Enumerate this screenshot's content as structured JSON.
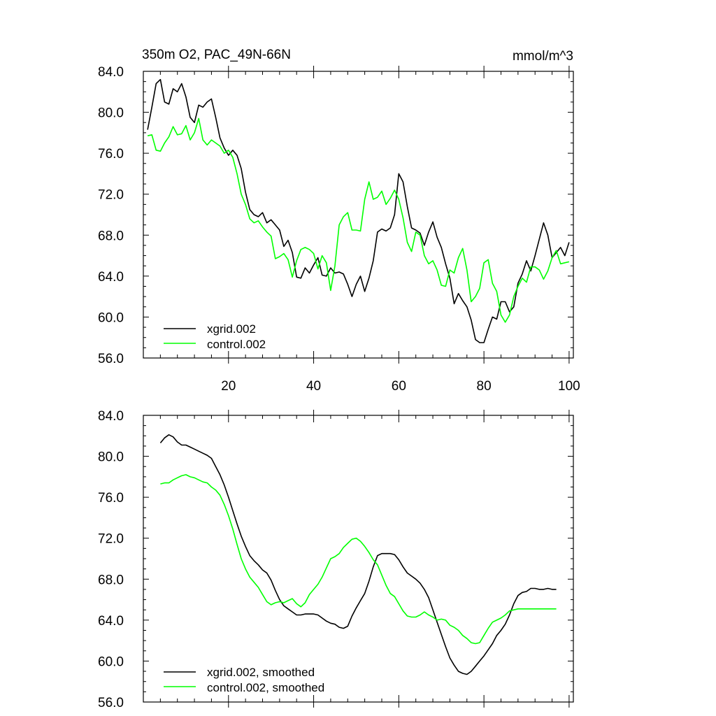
{
  "chart_data": [
    {
      "type": "line",
      "title": "350m O2, PAC_49N-66N",
      "units": "mmol/m^3",
      "xlim": [
        0,
        101
      ],
      "ylim": [
        56,
        84
      ],
      "xticks": [
        20,
        40,
        60,
        80,
        100
      ],
      "yticks": [
        56,
        60,
        64,
        68,
        72,
        76,
        80,
        84
      ],
      "ytick_labels": [
        "56.0",
        "60.0",
        "64.0",
        "68.0",
        "72.0",
        "76.0",
        "80.0",
        "84.0"
      ],
      "xtick_labels": [
        "20",
        "40",
        "60",
        "80",
        "100"
      ],
      "legend_position": "bottom-left",
      "series": [
        {
          "name": "xgrid.002",
          "color": "#000000",
          "x": [
            1,
            2,
            3,
            4,
            5,
            6,
            7,
            8,
            9,
            10,
            11,
            12,
            13,
            14,
            15,
            16,
            17,
            18,
            19,
            20,
            21,
            22,
            23,
            24,
            25,
            26,
            27,
            28,
            29,
            30,
            31,
            32,
            33,
            34,
            35,
            36,
            37,
            38,
            39,
            40,
            41,
            42,
            43,
            44,
            45,
            46,
            47,
            48,
            49,
            50,
            51,
            52,
            53,
            54,
            55,
            56,
            57,
            58,
            59,
            60,
            61,
            62,
            63,
            64,
            65,
            66,
            67,
            68,
            69,
            70,
            71,
            72,
            73,
            74,
            75,
            76,
            77,
            78,
            79,
            80,
            81,
            82,
            83,
            84,
            85,
            86,
            87,
            88,
            89,
            90,
            91,
            92,
            93,
            94,
            95,
            96,
            97,
            98,
            99,
            100
          ],
          "values": [
            78.3,
            80.5,
            82.8,
            83.2,
            81.0,
            80.8,
            82.3,
            82.0,
            82.8,
            81.5,
            79.5,
            79.0,
            80.7,
            80.5,
            81.0,
            81.3,
            79.5,
            77.5,
            76.5,
            75.8,
            76.3,
            75.8,
            74.5,
            72.2,
            70.5,
            70.0,
            69.8,
            70.2,
            69.2,
            69.5,
            69.0,
            68.5,
            66.9,
            67.5,
            66.3,
            63.9,
            63.8,
            64.8,
            64.3,
            65.1,
            65.8,
            64.1,
            64.0,
            64.8,
            64.3,
            64.4,
            64.2,
            63.2,
            62.0,
            63.2,
            64.0,
            62.5,
            63.8,
            65.5,
            68.3,
            68.6,
            68.4,
            68.7,
            70.0,
            74.0,
            73.2,
            70.8,
            68.7,
            68.5,
            68.2,
            67.0,
            68.3,
            69.3,
            67.8,
            66.8,
            65.2,
            63.8,
            61.3,
            62.3,
            61.6,
            61.0,
            59.7,
            57.8,
            57.5,
            57.5,
            58.8,
            60.0,
            59.8,
            61.5,
            61.5,
            60.5,
            61.0,
            63.3,
            64.2,
            65.5,
            64.5,
            66.0,
            67.6,
            69.2,
            68.0,
            65.8,
            66.3,
            66.8,
            66.0,
            67.3
          ]
        },
        {
          "name": "control.002",
          "color": "#00ff00",
          "x": [
            1,
            2,
            3,
            4,
            5,
            6,
            7,
            8,
            9,
            10,
            11,
            12,
            13,
            14,
            15,
            16,
            17,
            18,
            19,
            20,
            21,
            22,
            23,
            24,
            25,
            26,
            27,
            28,
            29,
            30,
            31,
            32,
            33,
            34,
            35,
            36,
            37,
            38,
            39,
            40,
            41,
            42,
            43,
            44,
            45,
            46,
            47,
            48,
            49,
            50,
            51,
            52,
            53,
            54,
            55,
            56,
            57,
            58,
            59,
            60,
            61,
            62,
            63,
            64,
            65,
            66,
            67,
            68,
            69,
            70,
            71,
            72,
            73,
            74,
            75,
            76,
            77,
            78,
            79,
            80,
            81,
            82,
            83,
            84,
            85,
            86,
            87,
            88,
            89,
            90,
            91,
            92,
            93,
            94,
            95,
            96,
            97,
            98,
            99,
            100
          ],
          "values": [
            77.7,
            77.8,
            76.3,
            76.2,
            77.0,
            77.6,
            78.6,
            77.8,
            77.9,
            78.7,
            77.3,
            78.0,
            79.4,
            77.3,
            76.8,
            77.3,
            77.0,
            76.7,
            76.0,
            76.3,
            75.6,
            74.0,
            72.0,
            71.0,
            69.6,
            69.2,
            69.4,
            68.8,
            68.3,
            67.9,
            65.7,
            65.9,
            66.2,
            65.6,
            63.9,
            65.5,
            66.6,
            66.8,
            66.6,
            66.2,
            64.7,
            66.0,
            65.3,
            62.6,
            65.0,
            69.0,
            69.8,
            70.2,
            68.5,
            68.5,
            68.4,
            71.5,
            73.2,
            71.5,
            71.7,
            72.3,
            71.0,
            71.6,
            72.4,
            71.5,
            69.7,
            67.3,
            66.4,
            68.3,
            68.0,
            66.0,
            65.2,
            65.5,
            64.6,
            63.1,
            63.0,
            64.6,
            64.3,
            65.8,
            66.7,
            64.6,
            61.5,
            62.0,
            62.8,
            65.3,
            65.6,
            63.3,
            62.5,
            60.2,
            59.5,
            60.2,
            62.0,
            63.0,
            63.8,
            63.4,
            64.9,
            64.9,
            64.6,
            63.7,
            64.5,
            65.8,
            66.5,
            65.2,
            65.3,
            65.4
          ]
        }
      ]
    },
    {
      "type": "line",
      "title": "",
      "xlim": [
        0,
        101
      ],
      "ylim": [
        56,
        84
      ],
      "xticks": [
        20,
        40,
        60,
        80,
        100
      ],
      "yticks": [
        56,
        60,
        64,
        68,
        72,
        76,
        80,
        84
      ],
      "ytick_labels": [
        "56.0",
        "60.0",
        "64.0",
        "68.0",
        "72.0",
        "76.0",
        "80.0",
        "84.0"
      ],
      "legend_position": "bottom-left",
      "series": [
        {
          "name": "xgrid.002, smoothed",
          "color": "#000000",
          "x": [
            4,
            5,
            6,
            7,
            8,
            9,
            10,
            11,
            12,
            13,
            14,
            15,
            16,
            17,
            18,
            19,
            20,
            21,
            22,
            23,
            24,
            25,
            26,
            27,
            28,
            29,
            30,
            31,
            32,
            33,
            34,
            35,
            36,
            37,
            38,
            39,
            40,
            41,
            42,
            43,
            44,
            45,
            46,
            47,
            48,
            49,
            50,
            51,
            52,
            53,
            54,
            55,
            56,
            57,
            58,
            59,
            60,
            61,
            62,
            63,
            64,
            65,
            66,
            67,
            68,
            69,
            70,
            71,
            72,
            73,
            74,
            75,
            76,
            77,
            78,
            79,
            80,
            81,
            82,
            83,
            84,
            85,
            86,
            87,
            88,
            89,
            90,
            91,
            92,
            93,
            94,
            95,
            96,
            97
          ],
          "values": [
            81.3,
            81.8,
            82.1,
            81.9,
            81.4,
            81.1,
            81.1,
            80.9,
            80.7,
            80.5,
            80.3,
            80.1,
            79.8,
            79.0,
            78.2,
            77.2,
            76.0,
            74.7,
            73.4,
            72.2,
            71.2,
            70.3,
            69.8,
            69.4,
            68.9,
            68.6,
            67.9,
            66.9,
            66.0,
            65.4,
            65.1,
            64.8,
            64.5,
            64.5,
            64.6,
            64.6,
            64.6,
            64.5,
            64.2,
            63.9,
            63.7,
            63.6,
            63.3,
            63.2,
            63.4,
            64.4,
            65.2,
            65.9,
            66.6,
            67.8,
            69.2,
            70.3,
            70.5,
            70.5,
            70.5,
            70.4,
            69.9,
            69.2,
            68.6,
            68.3,
            68.0,
            67.6,
            67.0,
            66.2,
            65.0,
            63.8,
            62.6,
            61.4,
            60.3,
            59.6,
            59.0,
            58.8,
            58.7,
            59.0,
            59.5,
            60.0,
            60.5,
            61.1,
            61.7,
            62.5,
            63.0,
            63.6,
            64.5,
            65.6,
            66.4,
            66.7,
            66.8,
            67.1,
            67.1,
            67.0,
            67.0,
            67.1,
            67.0,
            67.0
          ]
        },
        {
          "name": "control.002, smoothed",
          "color": "#00ff00",
          "x": [
            4,
            5,
            6,
            7,
            8,
            9,
            10,
            11,
            12,
            13,
            14,
            15,
            16,
            17,
            18,
            19,
            20,
            21,
            22,
            23,
            24,
            25,
            26,
            27,
            28,
            29,
            30,
            31,
            32,
            33,
            34,
            35,
            36,
            37,
            38,
            39,
            40,
            41,
            42,
            43,
            44,
            45,
            46,
            47,
            48,
            49,
            50,
            51,
            52,
            53,
            54,
            55,
            56,
            57,
            58,
            59,
            60,
            61,
            62,
            63,
            64,
            65,
            66,
            67,
            68,
            69,
            70,
            71,
            72,
            73,
            74,
            75,
            76,
            77,
            78,
            79,
            80,
            81,
            82,
            83,
            84,
            85,
            86,
            87,
            88,
            89,
            90,
            91,
            92,
            93,
            94,
            95,
            96,
            97
          ],
          "values": [
            77.3,
            77.4,
            77.4,
            77.7,
            77.9,
            78.1,
            78.2,
            78.0,
            77.9,
            77.7,
            77.5,
            77.4,
            77.0,
            76.7,
            76.2,
            75.3,
            74.2,
            72.9,
            71.4,
            70.0,
            69.0,
            68.2,
            67.7,
            67.2,
            66.5,
            65.8,
            65.5,
            65.7,
            65.8,
            65.7,
            65.9,
            66.1,
            65.6,
            65.3,
            65.7,
            66.5,
            67.0,
            67.5,
            68.2,
            69.1,
            70.0,
            70.2,
            70.5,
            71.1,
            71.5,
            71.9,
            72.0,
            71.7,
            71.2,
            70.6,
            69.9,
            69.4,
            68.4,
            67.4,
            66.6,
            66.3,
            65.6,
            64.9,
            64.4,
            64.3,
            64.3,
            64.5,
            64.8,
            64.5,
            64.3,
            64.0,
            64.1,
            64.0,
            63.5,
            63.3,
            63.0,
            62.5,
            62.2,
            61.8,
            61.7,
            61.8,
            62.5,
            63.2,
            63.8,
            64.0,
            64.2,
            64.5,
            64.9,
            65.0,
            65.1,
            65.1,
            65.1,
            65.1,
            65.1,
            65.1,
            65.1,
            65.1,
            65.1,
            65.1
          ]
        }
      ]
    }
  ]
}
